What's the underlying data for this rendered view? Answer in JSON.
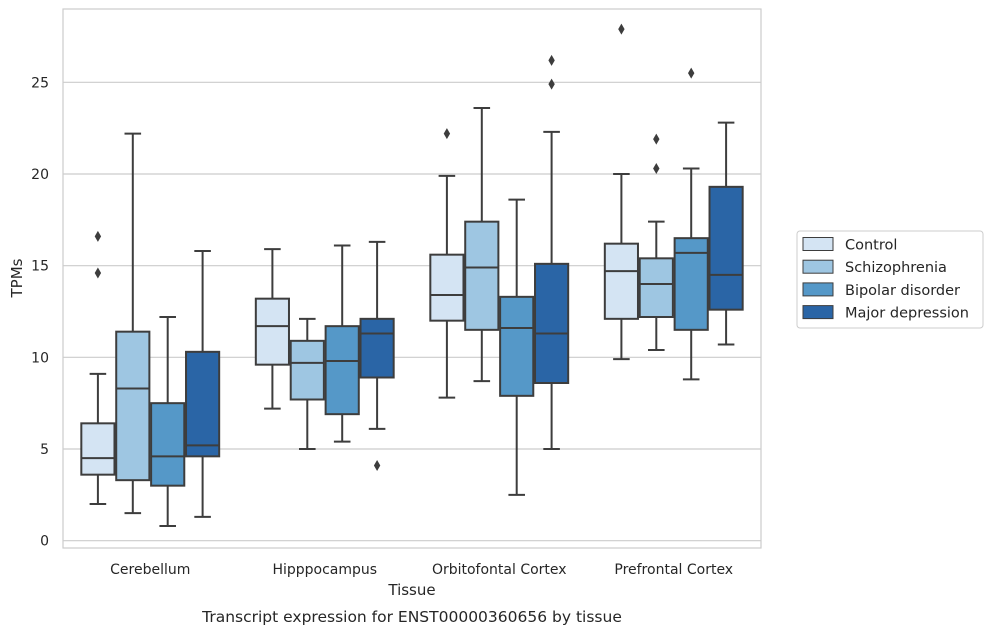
{
  "chart_data": {
    "type": "box",
    "caption": "Transcript expression for ENST00000360656 by tissue",
    "xlabel": "Tissue",
    "ylabel": "TPMs",
    "ylim": [
      -0.4,
      29
    ],
    "yticks": [
      0,
      5,
      10,
      15,
      20,
      25
    ],
    "grid": "horizontal",
    "legend_position": "right",
    "categories": [
      "Cerebellum",
      "Hipppocampus",
      "Orbitofontal Cortex",
      "Prefrontal Cortex"
    ],
    "series": [
      {
        "name": "Control",
        "color": "#d4e4f3",
        "boxes": [
          {
            "whislo": 2.0,
            "q1": 3.6,
            "med": 4.5,
            "q3": 6.4,
            "whishi": 9.1,
            "fliers": [
              14.6,
              16.6
            ]
          },
          {
            "whislo": 7.2,
            "q1": 9.6,
            "med": 11.7,
            "q3": 13.2,
            "whishi": 15.9,
            "fliers": []
          },
          {
            "whislo": 7.8,
            "q1": 12.0,
            "med": 13.4,
            "q3": 15.6,
            "whishi": 19.9,
            "fliers": [
              22.2
            ]
          },
          {
            "whislo": 9.9,
            "q1": 12.1,
            "med": 14.7,
            "q3": 16.2,
            "whishi": 20.0,
            "fliers": [
              27.9
            ]
          }
        ]
      },
      {
        "name": "Schizophrenia",
        "color": "#9ec6e2",
        "boxes": [
          {
            "whislo": 1.5,
            "q1": 3.3,
            "med": 8.3,
            "q3": 11.4,
            "whishi": 22.2,
            "fliers": []
          },
          {
            "whislo": 5.0,
            "q1": 7.7,
            "med": 9.7,
            "q3": 10.9,
            "whishi": 12.1,
            "fliers": []
          },
          {
            "whislo": 8.7,
            "q1": 11.5,
            "med": 14.9,
            "q3": 17.4,
            "whishi": 23.6,
            "fliers": []
          },
          {
            "whislo": 10.4,
            "q1": 12.2,
            "med": 14.0,
            "q3": 15.4,
            "whishi": 17.4,
            "fliers": [
              20.3,
              21.9
            ]
          }
        ]
      },
      {
        "name": "Bipolar disorder",
        "color": "#5598c8",
        "boxes": [
          {
            "whislo": 0.8,
            "q1": 3.0,
            "med": 4.6,
            "q3": 7.5,
            "whishi": 12.2,
            "fliers": []
          },
          {
            "whislo": 5.4,
            "q1": 6.9,
            "med": 9.8,
            "q3": 11.7,
            "whishi": 16.1,
            "fliers": []
          },
          {
            "whislo": 2.5,
            "q1": 7.9,
            "med": 11.6,
            "q3": 13.3,
            "whishi": 18.6,
            "fliers": []
          },
          {
            "whislo": 8.8,
            "q1": 11.5,
            "med": 15.7,
            "q3": 16.5,
            "whishi": 20.3,
            "fliers": [
              25.5
            ]
          }
        ]
      },
      {
        "name": "Major depression",
        "color": "#2a65a6",
        "boxes": [
          {
            "whislo": 1.3,
            "q1": 4.6,
            "med": 5.2,
            "q3": 10.3,
            "whishi": 15.8,
            "fliers": []
          },
          {
            "whislo": 6.1,
            "q1": 8.9,
            "med": 11.3,
            "q3": 12.1,
            "whishi": 16.3,
            "fliers": [
              4.1
            ]
          },
          {
            "whislo": 5.0,
            "q1": 8.6,
            "med": 11.3,
            "q3": 15.1,
            "whishi": 22.3,
            "fliers": [
              24.9,
              26.2
            ]
          },
          {
            "whislo": 10.7,
            "q1": 12.6,
            "med": 14.5,
            "q3": 19.3,
            "whishi": 22.8,
            "fliers": []
          }
        ]
      }
    ]
  }
}
